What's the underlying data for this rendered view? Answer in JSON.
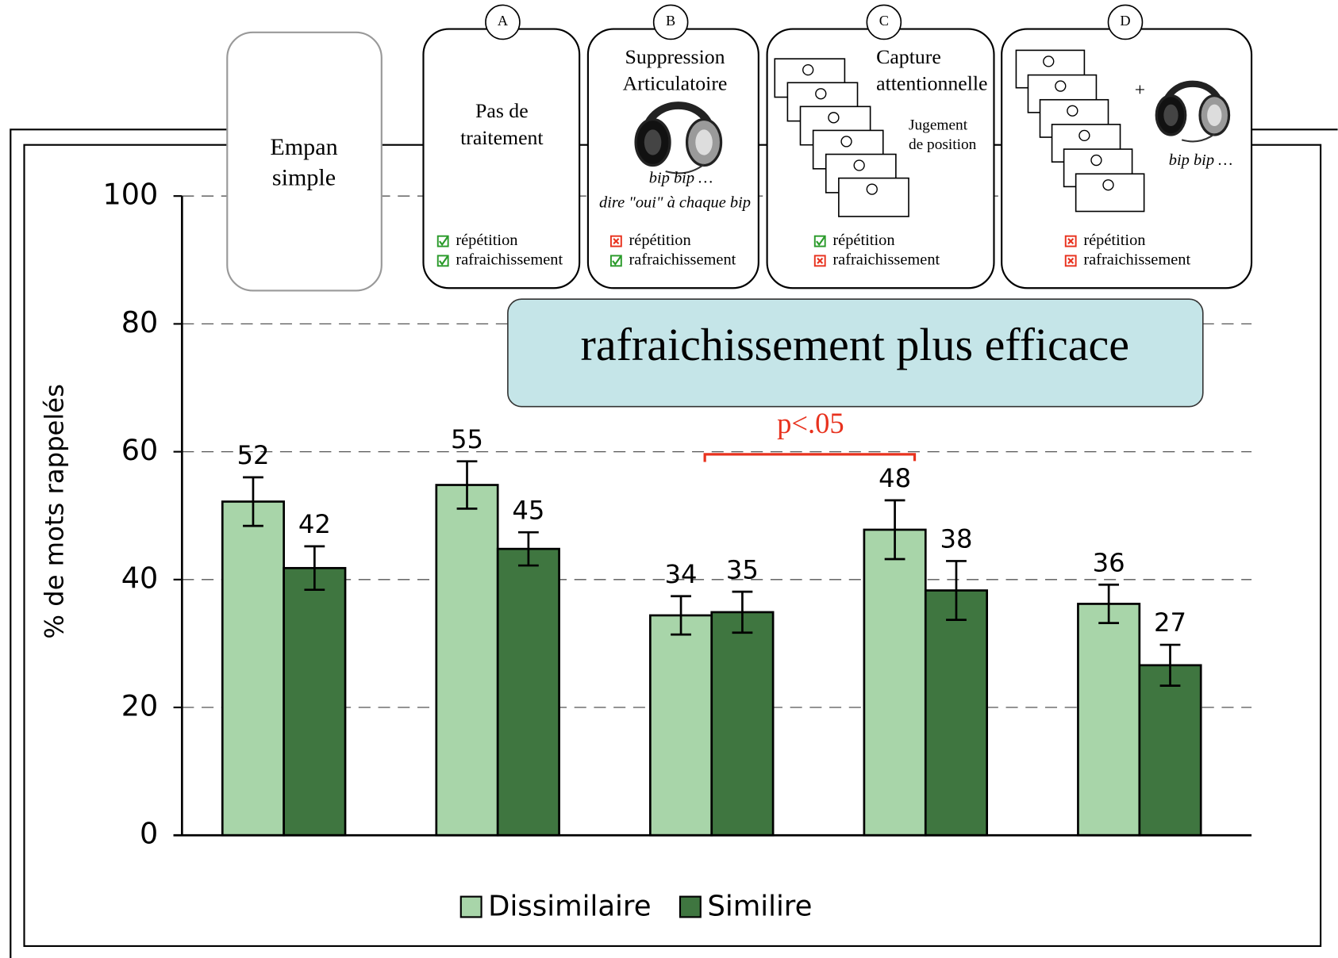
{
  "chart_data": {
    "type": "bar",
    "ylabel": "% de mots rappelés",
    "categories": [
      null,
      null,
      null,
      null,
      null
    ],
    "series": [
      {
        "name": "Dissimilaire",
        "color": "#a8d5a9",
        "values": [
          52.2,
          54.8,
          34.4,
          47.8,
          36.2
        ],
        "value_labels": [
          "52",
          "55",
          "34",
          "48",
          "36"
        ],
        "errors": [
          3.8,
          3.7,
          3.0,
          4.6,
          3.0
        ]
      },
      {
        "name": "Similire",
        "color": "#3f7640",
        "values": [
          41.8,
          44.8,
          34.9,
          38.3,
          26.6
        ],
        "value_labels": [
          "42",
          "45",
          "35",
          "38",
          "27"
        ],
        "errors": [
          3.4,
          2.6,
          3.2,
          4.6,
          3.2
        ]
      }
    ],
    "ylim": [
      0,
      100
    ],
    "yticks": [
      0,
      20,
      40,
      60,
      80,
      100
    ],
    "grid": true,
    "legend": "bottom",
    "highlight": "rafraichissement plus efficace",
    "significance": "p<.05",
    "panels": [
      {
        "title": [
          "Empan",
          "simple"
        ]
      },
      {
        "letter": "A",
        "title": [
          "Pas de",
          "traitement"
        ],
        "checks": [
          {
            "label": "répétition",
            "ok": true
          },
          {
            "label": "rafraichissement",
            "ok": true
          }
        ]
      },
      {
        "letter": "B",
        "title": [
          "Suppression",
          "Articulatoire"
        ],
        "notes": [
          "bip bip …",
          "dire \"oui\" à chaque bip"
        ],
        "checks": [
          {
            "label": "répétition",
            "ok": false
          },
          {
            "label": "rafraichissement",
            "ok": true
          }
        ]
      },
      {
        "letter": "C",
        "title": [
          "Capture",
          "attentionnelle"
        ],
        "notes": [
          "Jugement",
          "de position"
        ],
        "checks": [
          {
            "label": "répétition",
            "ok": true
          },
          {
            "label": "rafraichissement",
            "ok": false
          }
        ]
      },
      {
        "letter": "D",
        "notes": [
          "+",
          "bip bip …"
        ],
        "checks": [
          {
            "label": "répétition",
            "ok": false
          },
          {
            "label": "rafraichissement",
            "ok": false
          }
        ]
      }
    ]
  }
}
